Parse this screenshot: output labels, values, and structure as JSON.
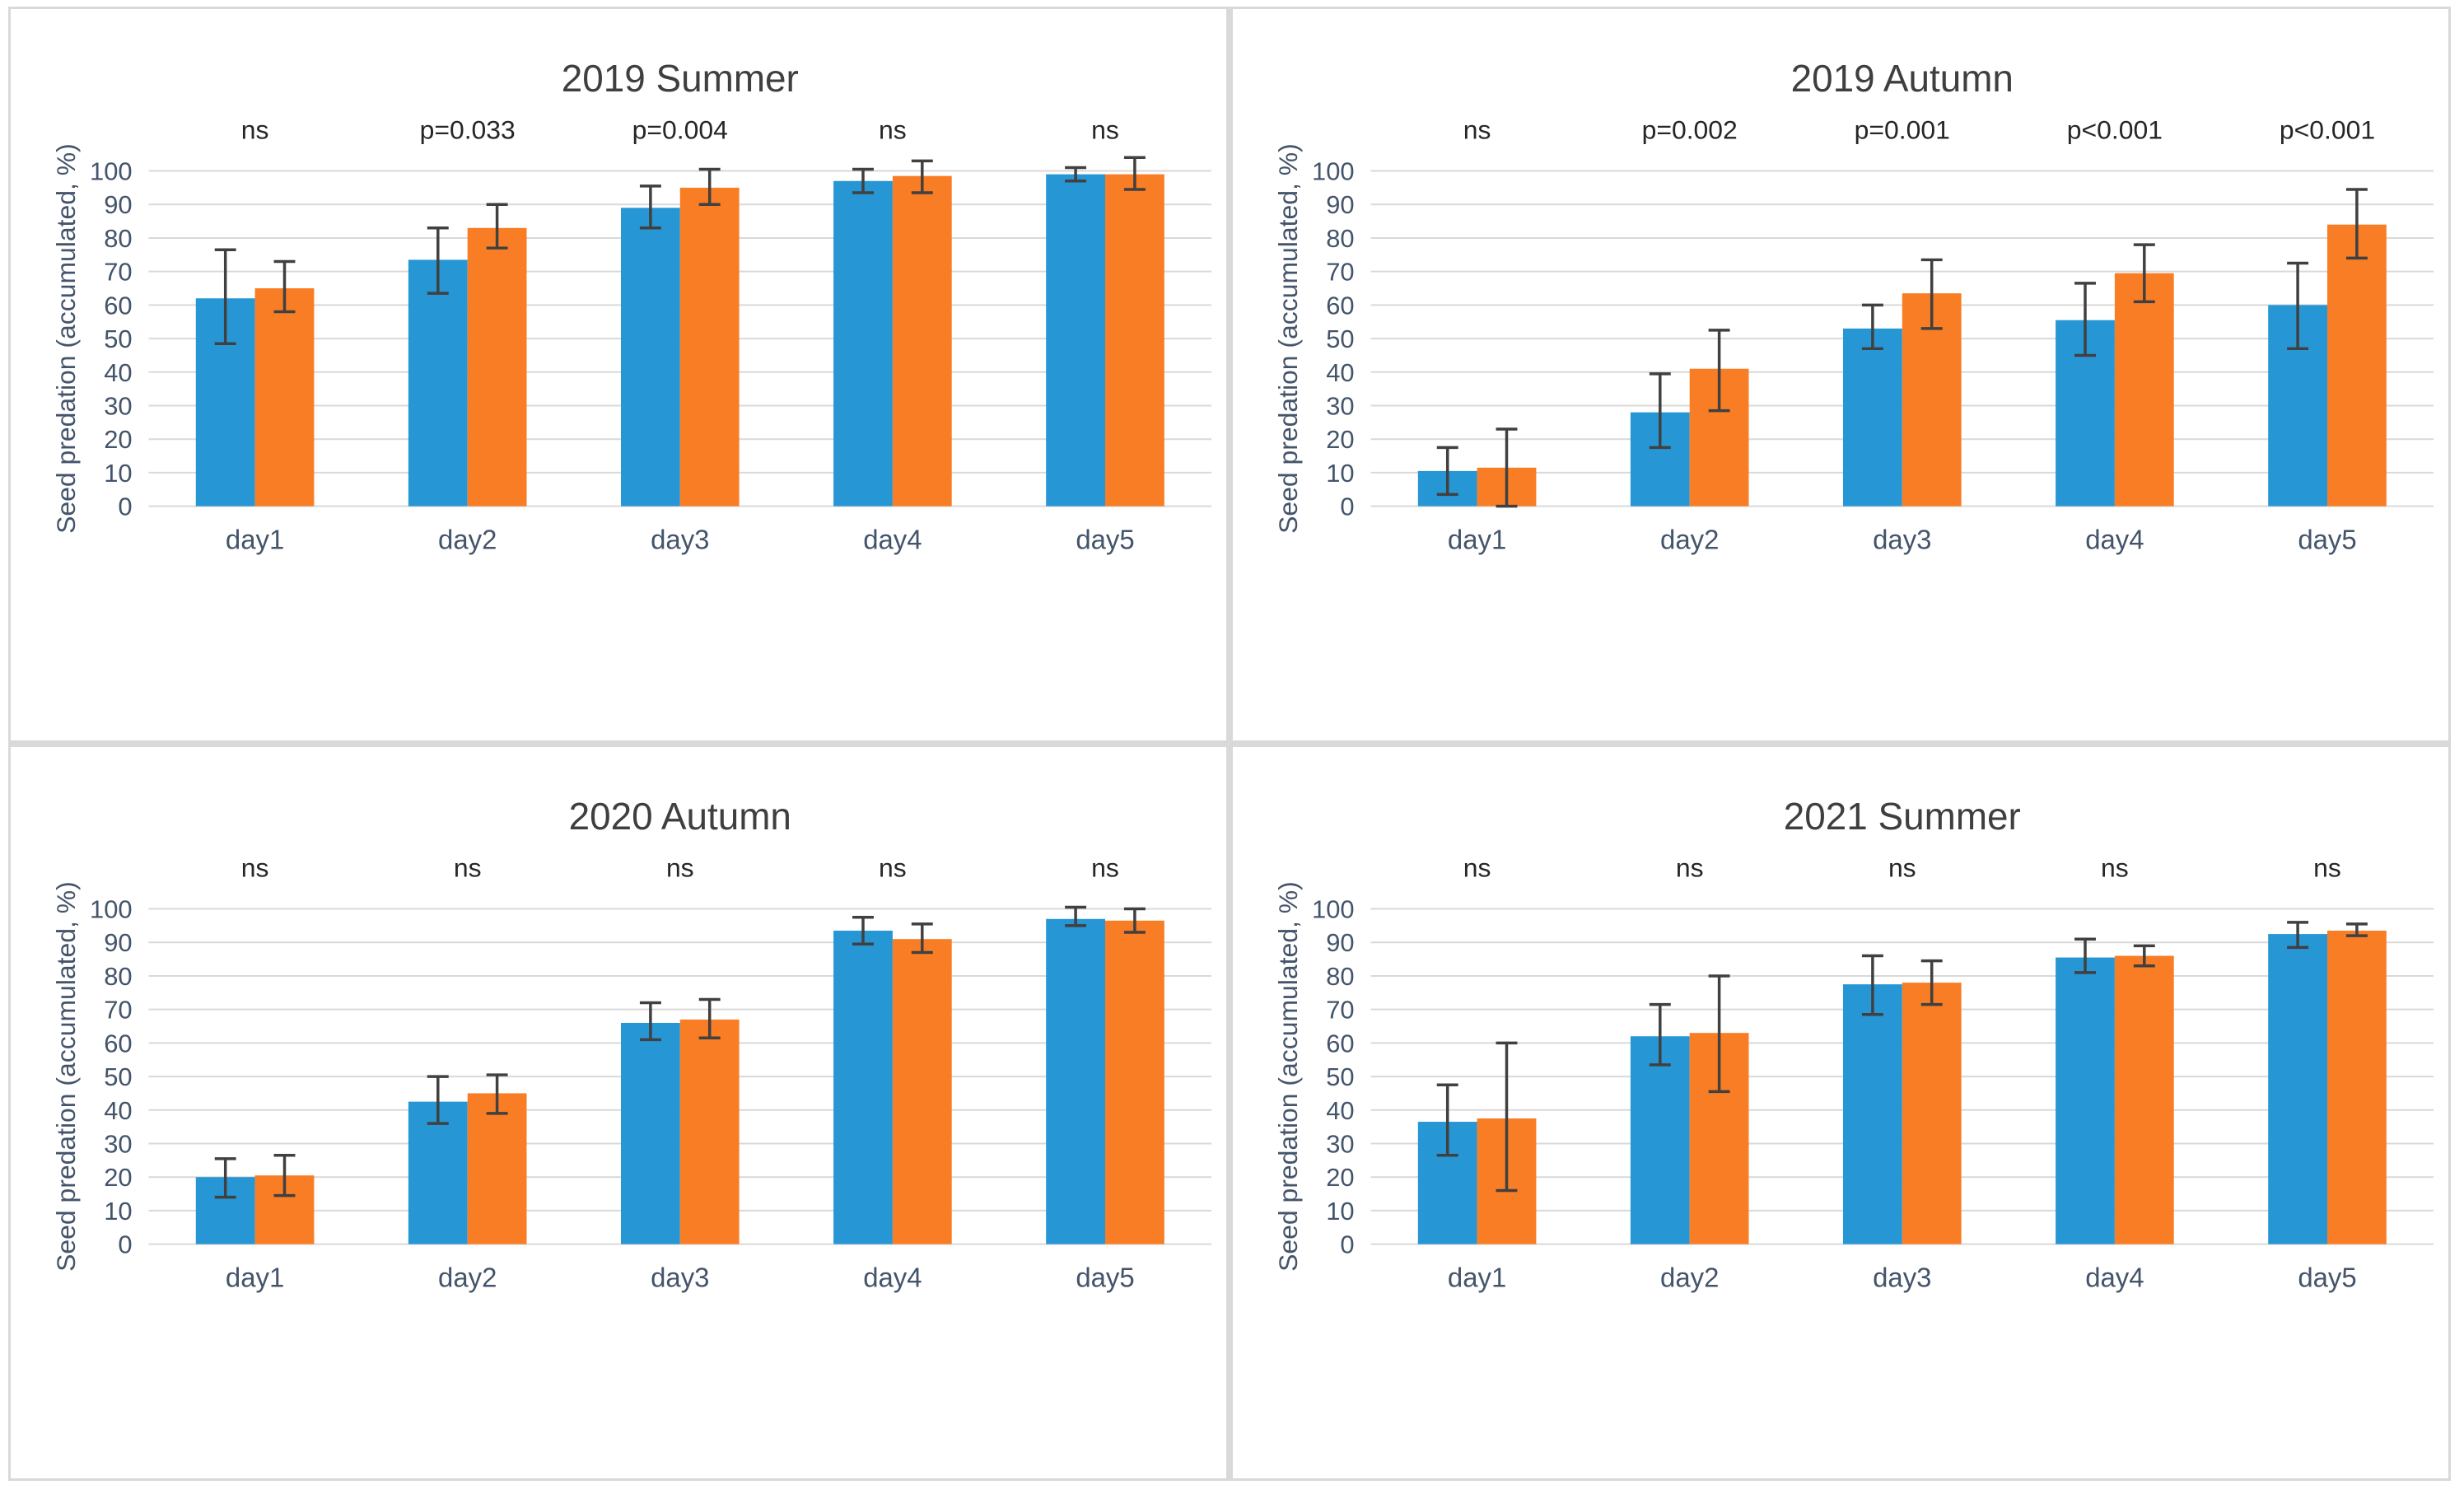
{
  "figure": {
    "layout": "2x2-grid",
    "description_order": [
      "top-left",
      "top-right",
      "bottom-left",
      "bottom-right"
    ]
  },
  "style": {
    "bar_color_blue": "#2796d4",
    "bar_color_orange": "#f97d24",
    "gridline_color": "#d9d9d9",
    "axis_text_color": "#44546a",
    "title_color": "#3f3f3f",
    "annotation_color": "#262626",
    "error_bar_color": "#404040",
    "panel_border_color": "#d9d9d9",
    "background_color": "#ffffff"
  },
  "chart_data": [
    {
      "type": "bar",
      "title": "2019 Summer",
      "ylabel": "Seed predation (accumulated, %)",
      "xlabel": "",
      "ylim": [
        0,
        100
      ],
      "ytick_step": 10,
      "grid": true,
      "legend": "none",
      "categories": [
        "day1",
        "day2",
        "day3",
        "day4",
        "day5"
      ],
      "annotations": [
        "ns",
        "p=0.033",
        "p=0.004",
        "ns",
        "ns"
      ],
      "series": [
        {
          "name": "blue-series",
          "color": "#2796d4",
          "values": [
            62,
            73.5,
            89,
            97,
            99
          ],
          "err_low": [
            48.5,
            63.5,
            83,
            93.5,
            97
          ],
          "err_high": [
            76.5,
            83,
            95.5,
            100.5,
            101
          ]
        },
        {
          "name": "orange-series",
          "color": "#f97d24",
          "values": [
            65,
            83,
            95,
            98.5,
            99
          ],
          "err_low": [
            58,
            77,
            90,
            93.5,
            94.5
          ],
          "err_high": [
            73,
            90,
            100.5,
            103,
            104
          ]
        }
      ]
    },
    {
      "type": "bar",
      "title": "2019 Autumn",
      "ylabel": "Seed predation (accumulated, %)",
      "xlabel": "",
      "ylim": [
        0,
        100
      ],
      "ytick_step": 10,
      "grid": true,
      "legend": "none",
      "categories": [
        "day1",
        "day2",
        "day3",
        "day4",
        "day5"
      ],
      "annotations": [
        "ns",
        "p=0.002",
        "p=0.001",
        "p<0.001",
        "p<0.001"
      ],
      "series": [
        {
          "name": "blue-series",
          "color": "#2796d4",
          "values": [
            10.5,
            28,
            53,
            55.5,
            60
          ],
          "err_low": [
            3.5,
            17.5,
            47,
            45,
            47
          ],
          "err_high": [
            17.5,
            39.5,
            60,
            66.5,
            72.5
          ]
        },
        {
          "name": "orange-series",
          "color": "#f97d24",
          "values": [
            11.5,
            41,
            63.5,
            69.5,
            84
          ],
          "err_low": [
            0,
            28.5,
            53,
            61,
            74
          ],
          "err_high": [
            23,
            52.5,
            73.5,
            78,
            94.5
          ]
        }
      ]
    },
    {
      "type": "bar",
      "title": "2020 Autumn",
      "ylabel": "Seed predation (accumulated, %)",
      "xlabel": "",
      "ylim": [
        0,
        100
      ],
      "ytick_step": 10,
      "grid": true,
      "legend": "none",
      "categories": [
        "day1",
        "day2",
        "day3",
        "day4",
        "day5"
      ],
      "annotations": [
        "ns",
        "ns",
        "ns",
        "ns",
        "ns"
      ],
      "series": [
        {
          "name": "blue-series",
          "color": "#2796d4",
          "values": [
            20,
            42.5,
            66,
            93.5,
            97
          ],
          "err_low": [
            14,
            36,
            61,
            89.5,
            95
          ],
          "err_high": [
            25.5,
            50,
            72,
            97.5,
            100.5
          ]
        },
        {
          "name": "orange-series",
          "color": "#f97d24",
          "values": [
            20.5,
            45,
            67,
            91,
            96.5
          ],
          "err_low": [
            14.5,
            39,
            61.5,
            87,
            93
          ],
          "err_high": [
            26.5,
            50.5,
            73,
            95.5,
            100
          ]
        }
      ]
    },
    {
      "type": "bar",
      "title": "2021 Summer",
      "ylabel": "Seed predation (accumulated, %)",
      "xlabel": "",
      "ylim": [
        0,
        100
      ],
      "ytick_step": 10,
      "grid": true,
      "legend": "none",
      "categories": [
        "day1",
        "day2",
        "day3",
        "day4",
        "day5"
      ],
      "annotations": [
        "ns",
        "ns",
        "ns",
        "ns",
        "ns"
      ],
      "series": [
        {
          "name": "blue-series",
          "color": "#2796d4",
          "values": [
            36.5,
            62,
            77.5,
            85.5,
            92.5
          ],
          "err_low": [
            26.5,
            53.5,
            68.5,
            81,
            88.5
          ],
          "err_high": [
            47.5,
            71.5,
            86,
            91,
            96
          ]
        },
        {
          "name": "orange-series",
          "color": "#f97d24",
          "values": [
            37.5,
            63,
            78,
            86,
            93.5
          ],
          "err_low": [
            16,
            45.5,
            71.5,
            83,
            92
          ],
          "err_high": [
            60,
            80,
            84.5,
            89,
            95.5
          ]
        }
      ]
    }
  ]
}
